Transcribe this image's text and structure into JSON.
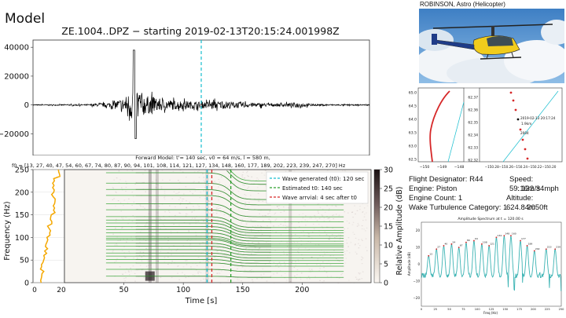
{
  "model_label": "Model",
  "seismogram": {
    "title": "ZE.1004..DPZ − starting 2019-02-13T20:15:24.001998Z",
    "yticks": [
      "40000",
      "20000",
      "0",
      "−20000"
    ]
  },
  "spectrogram": {
    "title_line1": "Forward Model: t'= 140 sec, v0 = 64 m/s, l = 580 m,",
    "title_line2": "f0 = [13, 27, 40, 47, 54, 60, 67, 74, 80, 87, 90, 94, 101, 108, 114, 121, 127, 134, 148, 160, 177, 189, 202, 223, 239, 247, 270] Hz",
    "ylabel": "Frequency (Hz)",
    "xlabel": "Time [s]",
    "yticks": [
      "0",
      "50",
      "100",
      "150",
      "200",
      "250"
    ],
    "xticks": [
      "50",
      "100",
      "150",
      "200"
    ],
    "left_xticks": [
      "0",
      "20"
    ],
    "cbar_label": "Relative Amplitude (dB)",
    "cbar_ticks": [
      "0",
      "5",
      "10",
      "15",
      "20",
      "25",
      "30"
    ],
    "legend": [
      {
        "label": "Wave generated (t0): 120 sec",
        "color": "#17becf"
      },
      {
        "label": "Estimated t0: 140 sec",
        "color": "#2ca02c"
      },
      {
        "label": "Wave arrvial: 4 sec after t0",
        "color": "#d62728"
      }
    ]
  },
  "helicopter": {
    "caption": "ROBINSON, Astro (Helicopter)"
  },
  "track_plot": {
    "left_yticks": [
      "65.0",
      "64.5",
      "64.0",
      "63.5",
      "63.0",
      "62.5"
    ],
    "left_xticks": [
      "−150",
      "−149",
      "−148"
    ],
    "right_yticks": [
      "62.37",
      "62.36",
      "62.35",
      "62.34",
      "62.33",
      "62.32"
    ],
    "right_xticks": "−150.28−150.26−150.24−150.22−150.20",
    "annotations": [
      "2019-02-13 20:17:24",
      "1.9km",
      "2004"
    ]
  },
  "flight_info": {
    "designator": "Flight Designator: R44",
    "speed": "Speed: 59.16m/s",
    "engine": "Engine: Piston",
    "speed2": ": 132.34mph",
    "engine_count": "Engine Count: 1",
    "altitude": "Altitude: 624.84m",
    "wake": "Wake Turbulence Category: 1",
    "altitude2": ": 2050ft"
  },
  "amp_spectrum": {
    "title": "Amplitude Spectrum at t = 120.00 s",
    "xlabel": "Freq (Hz)",
    "ylabel": "Amplitude (dB)",
    "yticks": [
      "20",
      "10",
      "0",
      "−10",
      "−20"
    ],
    "xticks": [
      "0",
      "25",
      "50",
      "75",
      "100",
      "125",
      "150",
      "175",
      "200",
      "225",
      "250"
    ]
  },
  "chart_data": [
    {
      "type": "line",
      "title": "ZE.1004..DPZ − starting 2019-02-13T20:15:24.001998Z",
      "xlabel": "",
      "ylabel": "",
      "ylim": [
        -35000,
        45000
      ],
      "note_values": "seismogram amplitude envelope",
      "envelope": [
        {
          "t": 0,
          "amp": 600
        },
        {
          "t": 40,
          "amp": 900
        },
        {
          "t": 55,
          "amp": 3000
        },
        {
          "t": 65,
          "amp": 9000
        },
        {
          "t": 70,
          "amp": 18000
        },
        {
          "t": 72,
          "amp": 38000
        },
        {
          "t": 75,
          "amp": 20000
        },
        {
          "t": 80,
          "amp": 12000
        },
        {
          "t": 90,
          "amp": 8000
        },
        {
          "t": 100,
          "amp": 6000
        },
        {
          "t": 110,
          "amp": 5000
        },
        {
          "t": 120,
          "amp": 4000
        },
        {
          "t": 130,
          "amp": 5000
        },
        {
          "t": 140,
          "amp": 4500
        },
        {
          "t": 150,
          "amp": 3500
        },
        {
          "t": 160,
          "amp": 2500
        },
        {
          "t": 175,
          "amp": 1800
        },
        {
          "t": 190,
          "amp": 3000
        },
        {
          "t": 200,
          "amp": 1200
        },
        {
          "t": 230,
          "amp": 700
        }
      ],
      "vertical_line_t": 120
    },
    {
      "type": "heatmap",
      "title": "Forward Model: t'= 140 sec, v0 = 64 m/s, l = 580 m,",
      "xlabel": "Time [s]",
      "ylabel": "Frequency (Hz)",
      "xlim": [
        0,
        250
      ],
      "ylim": [
        0,
        250
      ],
      "f0": [
        13,
        27,
        40,
        47,
        54,
        60,
        67,
        74,
        80,
        87,
        90,
        94,
        101,
        108,
        114,
        121,
        127,
        134,
        148,
        160,
        177,
        189,
        202,
        223,
        239,
        247,
        270
      ],
      "t_prime": 140,
      "v0": 64,
      "l": 580,
      "vlines": [
        {
          "t": 120,
          "color": "#17becf"
        },
        {
          "t": 140,
          "color": "#2ca02c"
        },
        {
          "t": 124,
          "color": "#d62728"
        }
      ],
      "clim": [
        0,
        30
      ]
    },
    {
      "type": "line",
      "title": "Amplitude Spectrum at t = 120.00 s",
      "xlabel": "Freq (Hz)",
      "ylabel": "Amplitude (dB)",
      "xlim": [
        0,
        250
      ],
      "ylim": [
        -25,
        25
      ],
      "peaks": [
        {
          "f": 13,
          "db": 5
        },
        {
          "f": 27,
          "db": 9
        },
        {
          "f": 40,
          "db": 11
        },
        {
          "f": 54,
          "db": 12
        },
        {
          "f": 67,
          "db": 10
        },
        {
          "f": 80,
          "db": 13
        },
        {
          "f": 94,
          "db": 14
        },
        {
          "f": 108,
          "db": 12
        },
        {
          "f": 121,
          "db": 11
        },
        {
          "f": 134,
          "db": 16
        },
        {
          "f": 148,
          "db": 17
        },
        {
          "f": 160,
          "db": 17
        },
        {
          "f": 177,
          "db": 14
        },
        {
          "f": 189,
          "db": 11
        },
        {
          "f": 202,
          "db": 8
        },
        {
          "f": 223,
          "db": 9
        },
        {
          "f": 239,
          "db": 9
        }
      ],
      "baseline_db": -8
    }
  ]
}
